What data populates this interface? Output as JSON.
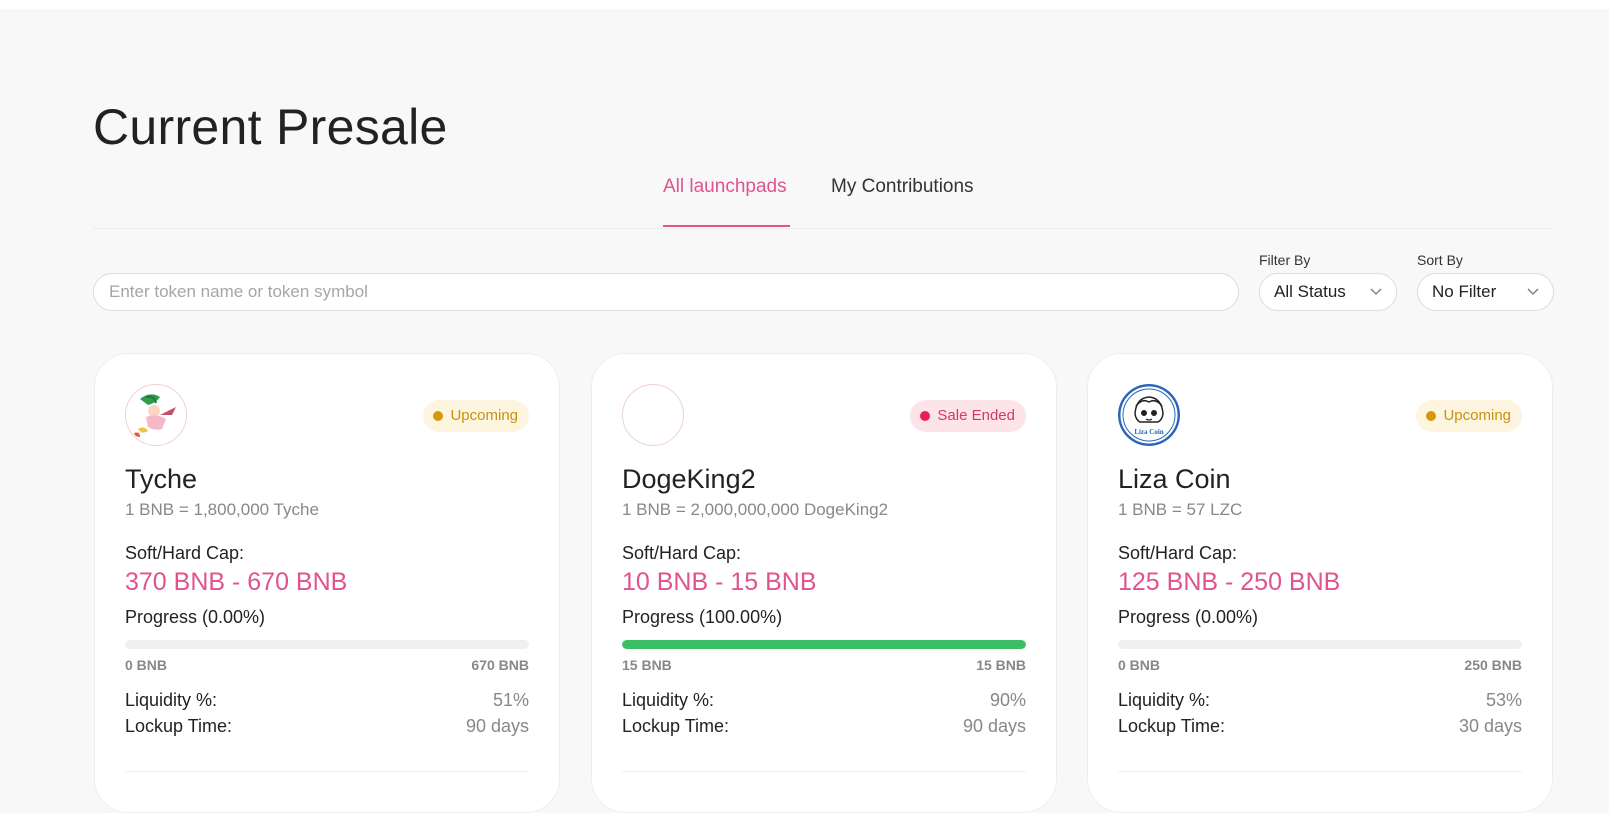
{
  "page": {
    "title": "Current Presale"
  },
  "tabs": [
    {
      "label": "All launchpads",
      "active": true
    },
    {
      "label": "My Contributions",
      "active": false
    }
  ],
  "search": {
    "placeholder": "Enter token name or token symbol",
    "value": ""
  },
  "filter": {
    "label": "Filter By",
    "value": "All Status"
  },
  "sort": {
    "label": "Sort By",
    "value": "No Filter"
  },
  "colors": {
    "accent": "#e0538e",
    "progress": "#3cbf64",
    "upcoming": "#d3990a",
    "sale_ended": "#ec1f55"
  },
  "cards": [
    {
      "name": "Tyche",
      "rate": "1 BNB = 1,800,000 Tyche",
      "status": "Upcoming",
      "status_type": "upcoming",
      "logo_icon": "tyche-logo-icon",
      "cap_label": "Soft/Hard Cap:",
      "cap_value": "370 BNB - 670 BNB",
      "progress_label": "Progress (0.00%)",
      "progress_percent": 0,
      "range_min": "0 BNB",
      "range_max": "670 BNB",
      "liquidity_label": "Liquidity %:",
      "liquidity_value": "51%",
      "lockup_label": "Lockup Time:",
      "lockup_value": "90 days"
    },
    {
      "name": "DogeKing2",
      "rate": "1 BNB = 2,000,000,000 DogeKing2",
      "status": "Sale Ended",
      "status_type": "ended",
      "logo_icon": "blank-logo-icon",
      "cap_label": "Soft/Hard Cap:",
      "cap_value": "10 BNB - 15 BNB",
      "progress_label": "Progress (100.00%)",
      "progress_percent": 100,
      "range_min": "15 BNB",
      "range_max": "15 BNB",
      "liquidity_label": "Liquidity %:",
      "liquidity_value": "90%",
      "lockup_label": "Lockup Time:",
      "lockup_value": "90 days"
    },
    {
      "name": "Liza Coin",
      "rate": "1 BNB = 57 LZC",
      "status": "Upcoming",
      "status_type": "upcoming",
      "logo_icon": "liza-coin-logo-icon",
      "logo_text": "Liza Coin",
      "cap_label": "Soft/Hard Cap:",
      "cap_value": "125 BNB - 250 BNB",
      "progress_label": "Progress (0.00%)",
      "progress_percent": 0,
      "range_min": "0 BNB",
      "range_max": "250 BNB",
      "liquidity_label": "Liquidity %:",
      "liquidity_value": "53%",
      "lockup_label": "Lockup Time:",
      "lockup_value": "30 days"
    }
  ]
}
